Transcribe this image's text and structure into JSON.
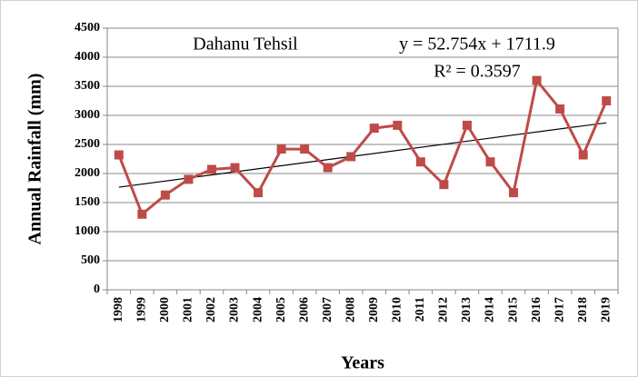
{
  "chart_data": {
    "type": "line",
    "annotation": "Dahanu Tehsil",
    "x_label": "Years",
    "y_label": "Annual Rainfall (mm)",
    "categories": [
      "1998",
      "1999",
      "2000",
      "2001",
      "2002",
      "2003",
      "2004",
      "2005",
      "2006",
      "2007",
      "2008",
      "2009",
      "2010",
      "2011",
      "2012",
      "2013",
      "2014",
      "2015",
      "2016",
      "2017",
      "2018",
      "2019"
    ],
    "series": [
      {
        "name": "Annual Rainfall",
        "color": "#be4b48",
        "values": [
          2320,
          1300,
          1630,
          1900,
          2070,
          2100,
          1670,
          2420,
          2420,
          2100,
          2290,
          2780,
          2830,
          2200,
          1810,
          2830,
          2200,
          1670,
          3600,
          3110,
          2320,
          3250
        ]
      }
    ],
    "trendline": {
      "label": "y = 52.754x + 1711.9",
      "slope": 52.754,
      "intercept": 1711.9,
      "r2_label": "R² = 0.3597",
      "color": "#000000"
    },
    "ylim": [
      0,
      4500
    ],
    "yticks": [
      0,
      500,
      1000,
      1500,
      2000,
      2500,
      3000,
      3500,
      4000,
      4500
    ],
    "grid": true
  }
}
